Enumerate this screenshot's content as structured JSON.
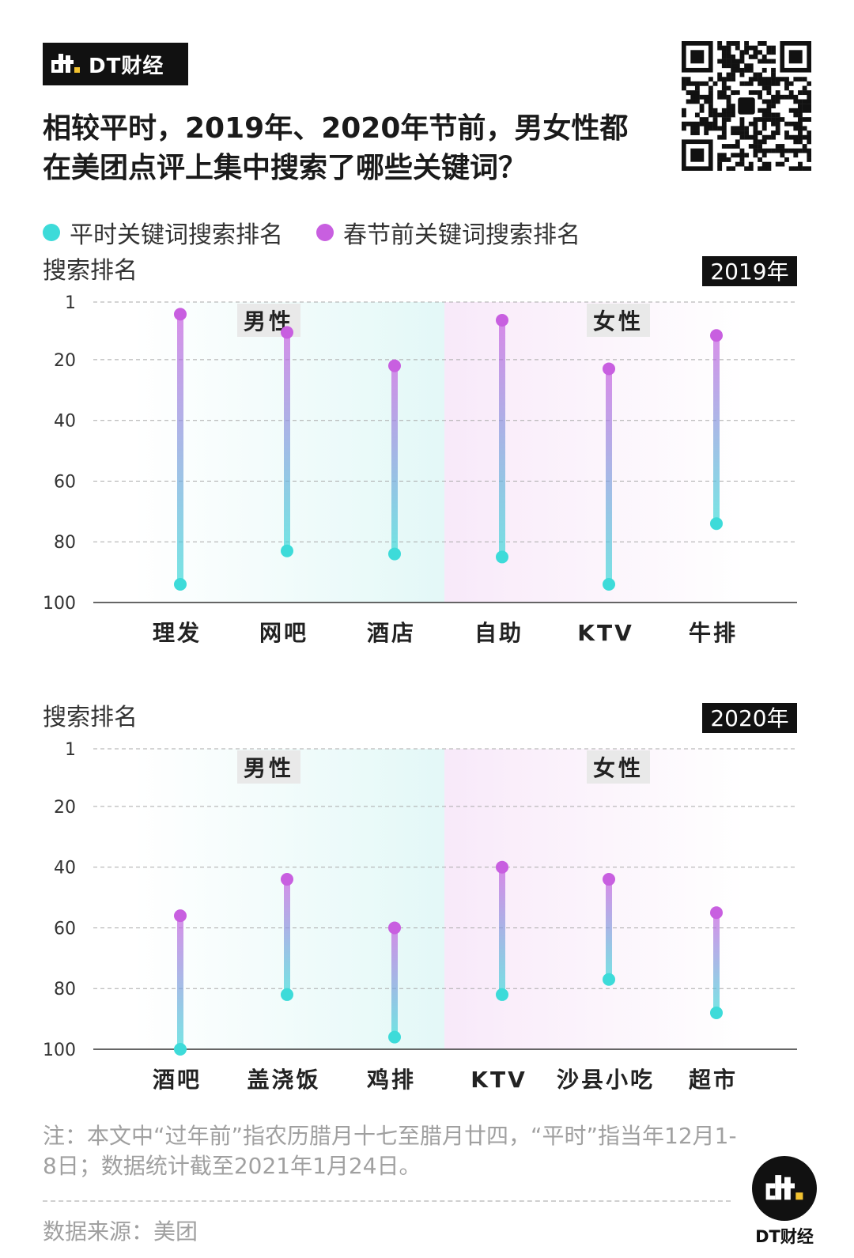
{
  "brand": {
    "name": "DT财经",
    "mark_icon": "dt-logo-icon"
  },
  "title": "相较平时，2019年、2020年节前，男女性都在美团点评上集中搜索了哪些关键词？",
  "colors": {
    "regular": "#3ddbd9",
    "festival": "#c85fe0",
    "male_bg": "#e3f8f7",
    "female_bg": "#f8e9f9",
    "label_bg": "#e9e9e9"
  },
  "legend": [
    {
      "label": "平时关键词搜索排名",
      "color": "#3ddbd9"
    },
    {
      "label": "春节前关键词搜索排名",
      "color": "#c85fe0"
    }
  ],
  "chart_data": [
    {
      "type": "dumbbell",
      "year_label": "2019年",
      "ylabel": "搜索排名",
      "ylim": [
        1,
        100
      ],
      "y_inverted": true,
      "yticks": [
        "1",
        "20",
        "40",
        "60",
        "80",
        "100"
      ],
      "groups": [
        "男性",
        "女性"
      ],
      "categories": [
        "理发",
        "网吧",
        "酒店",
        "自助",
        "KTV",
        "牛排"
      ],
      "category_group": [
        "男性",
        "男性",
        "男性",
        "女性",
        "女性",
        "女性"
      ],
      "series": [
        {
          "name": "平时关键词搜索排名",
          "values": [
            94,
            83,
            84,
            85,
            94,
            74
          ]
        },
        {
          "name": "春节前关键词搜索排名",
          "values": [
            5,
            11,
            22,
            7,
            23,
            12
          ]
        }
      ]
    },
    {
      "type": "dumbbell",
      "year_label": "2020年",
      "ylabel": "搜索排名",
      "ylim": [
        1,
        100
      ],
      "y_inverted": true,
      "yticks": [
        "1",
        "20",
        "40",
        "60",
        "80",
        "100"
      ],
      "groups": [
        "男性",
        "女性"
      ],
      "categories": [
        "酒吧",
        "盖浇饭",
        "鸡排",
        "KTV",
        "沙县小吃",
        "超市"
      ],
      "category_group": [
        "男性",
        "男性",
        "男性",
        "女性",
        "女性",
        "女性"
      ],
      "series": [
        {
          "name": "平时关键词搜索排名",
          "values": [
            100,
            82,
            96,
            82,
            77,
            88
          ]
        },
        {
          "name": "春节前关键词搜索排名",
          "values": [
            56,
            44,
            60,
            40,
            44,
            55
          ]
        }
      ]
    }
  ],
  "note": "注：本文中“过年前”指农历腊月十七至腊月廿四，“平时”指当年12月1-8日；数据统计截至2021年1月24日。",
  "source": "数据来源：美团",
  "footer_logo_text": "DT财经"
}
